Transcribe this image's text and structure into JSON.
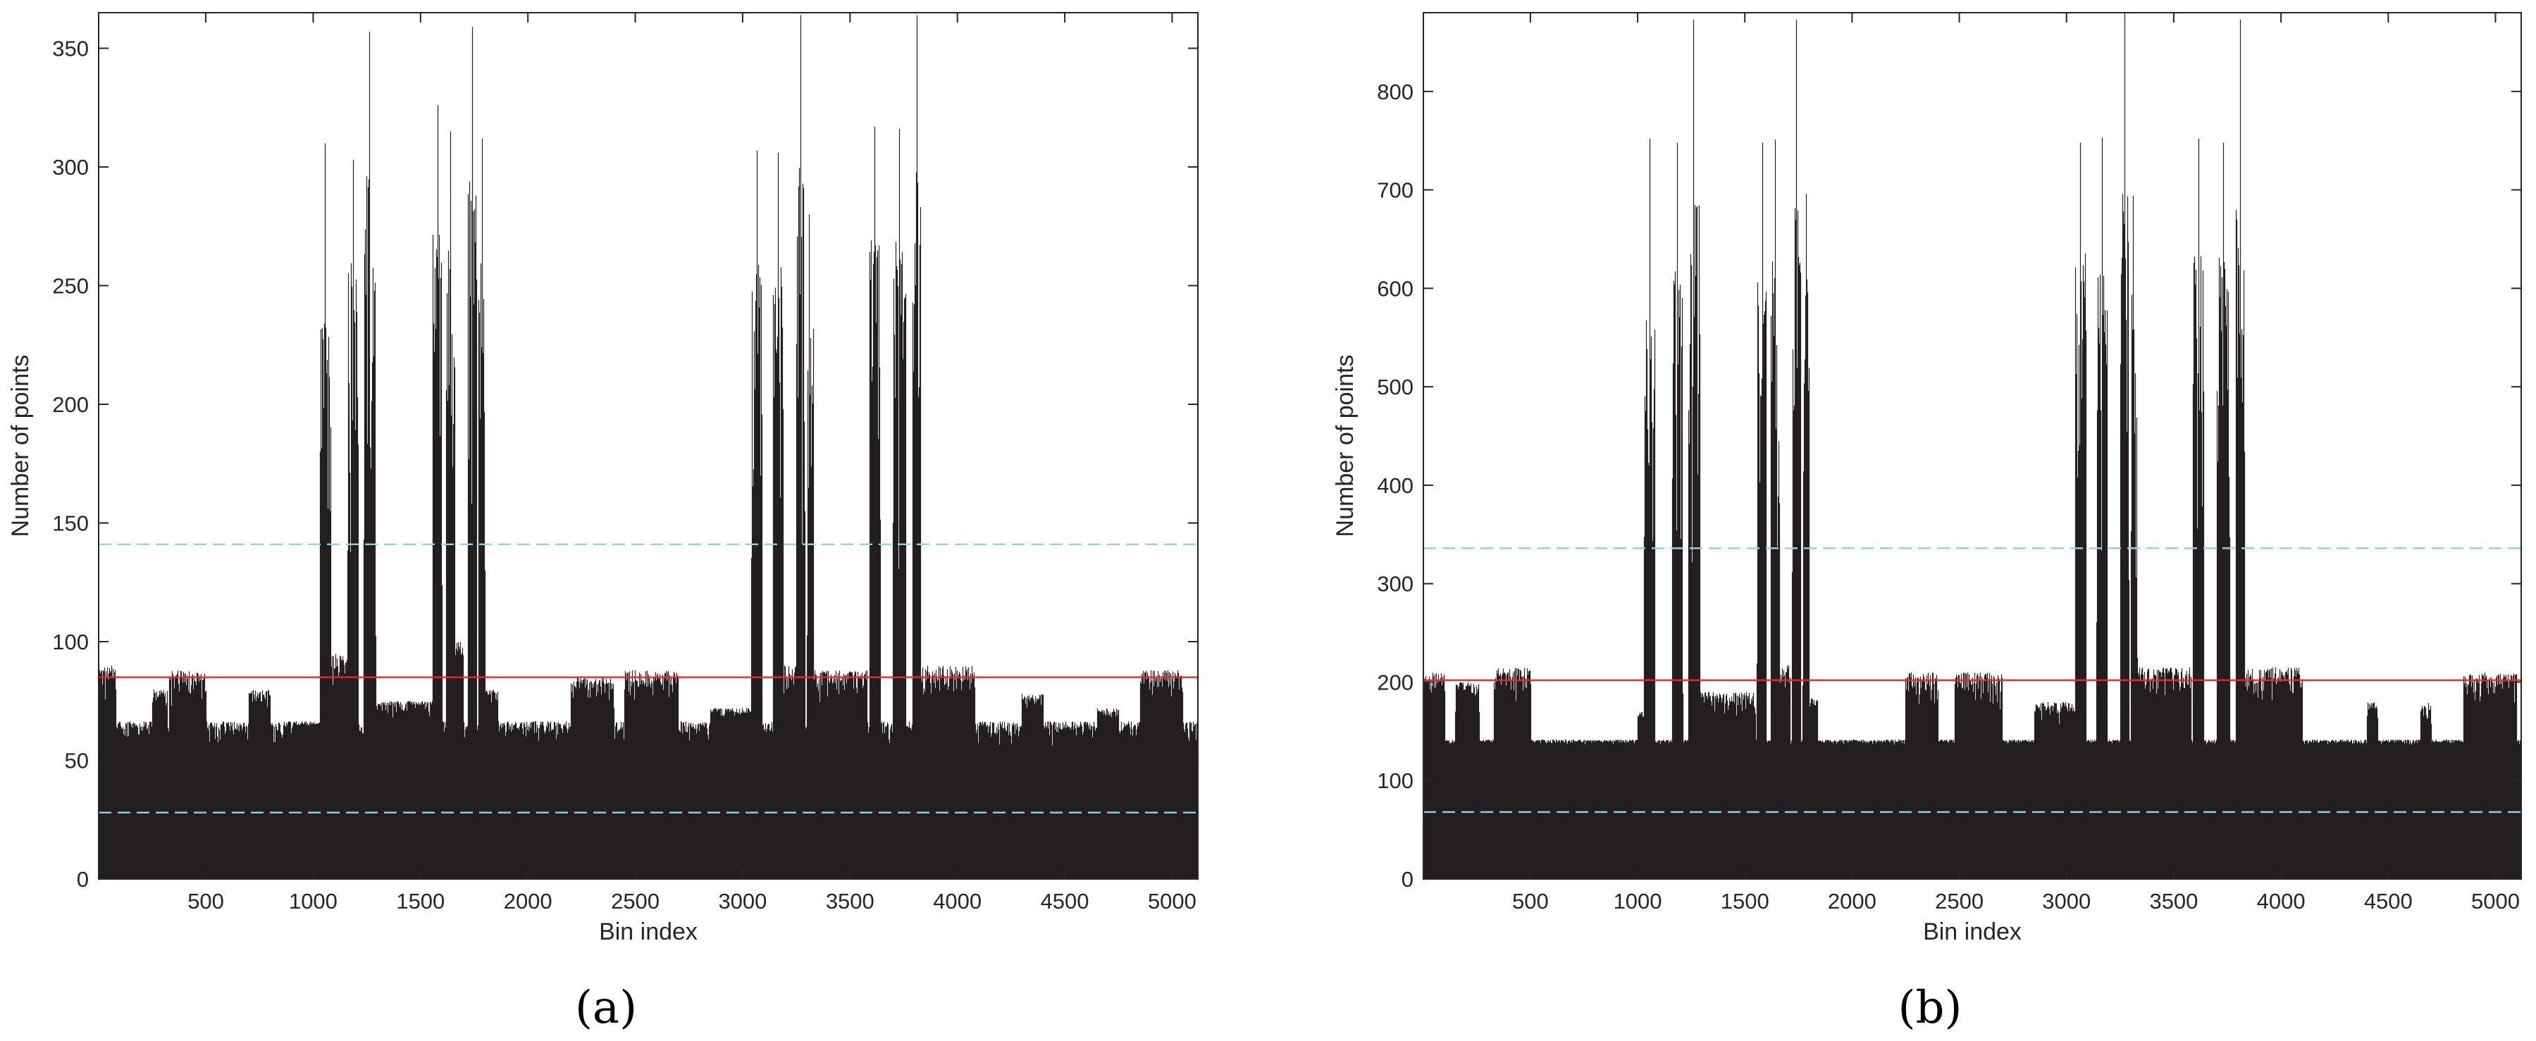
{
  "chart_data": [
    {
      "type": "bar",
      "panel_label": "(a)",
      "xlabel": "Bin index",
      "ylabel": "Number of points",
      "xlim": [
        1,
        5120
      ],
      "ylim": [
        0,
        365
      ],
      "xticks": [
        500,
        1000,
        1500,
        2000,
        2500,
        3000,
        3500,
        4000,
        4500,
        5000
      ],
      "yticks": [
        0,
        50,
        100,
        150,
        200,
        250,
        300,
        350
      ],
      "grid": false,
      "bar_color": "#231f20",
      "baseline": 60,
      "noise_amplitude": 18,
      "clusters": [
        {
          "x0": 0,
          "x1": 80,
          "level": 90
        },
        {
          "x0": 250,
          "x1": 320,
          "level": 80
        },
        {
          "x0": 330,
          "x1": 500,
          "level": 88
        },
        {
          "x0": 700,
          "x1": 800,
          "level": 80
        },
        {
          "x0": 900,
          "x1": 1050,
          "level": 66
        },
        {
          "x0": 1080,
          "x1": 1180,
          "level": 95
        },
        {
          "x0": 1280,
          "x1": 1560,
          "level": 75
        },
        {
          "x0": 1650,
          "x1": 1700,
          "level": 100
        },
        {
          "x0": 1780,
          "x1": 1860,
          "level": 80
        },
        {
          "x0": 2200,
          "x1": 2400,
          "level": 85
        },
        {
          "x0": 2450,
          "x1": 2700,
          "level": 88
        },
        {
          "x0": 2850,
          "x1": 3050,
          "level": 72
        },
        {
          "x0": 3180,
          "x1": 3260,
          "level": 90
        },
        {
          "x0": 3320,
          "x1": 3580,
          "level": 88
        },
        {
          "x0": 3830,
          "x1": 4080,
          "level": 90
        },
        {
          "x0": 4300,
          "x1": 4400,
          "level": 78
        },
        {
          "x0": 4650,
          "x1": 4750,
          "level": 72
        },
        {
          "x0": 4850,
          "x1": 5050,
          "level": 88
        }
      ],
      "peaks": [
        {
          "x0": 1030,
          "x1": 1080,
          "level": 240
        },
        {
          "x0": 1160,
          "x1": 1210,
          "level": 260
        },
        {
          "x0": 1235,
          "x1": 1290,
          "level": 300
        },
        {
          "x0": 1555,
          "x1": 1600,
          "level": 280
        },
        {
          "x0": 1620,
          "x1": 1660,
          "level": 270
        },
        {
          "x0": 1720,
          "x1": 1760,
          "level": 300
        },
        {
          "x0": 1770,
          "x1": 1800,
          "level": 260
        },
        {
          "x0": 3040,
          "x1": 3090,
          "level": 260
        },
        {
          "x0": 3140,
          "x1": 3190,
          "level": 260
        },
        {
          "x0": 3250,
          "x1": 3290,
          "level": 300
        },
        {
          "x0": 3300,
          "x1": 3330,
          "level": 240
        },
        {
          "x0": 3590,
          "x1": 3640,
          "level": 270
        },
        {
          "x0": 3700,
          "x1": 3760,
          "level": 270
        },
        {
          "x0": 3790,
          "x1": 3830,
          "level": 300
        }
      ],
      "peak_maxima": [
        {
          "x": 1055,
          "y": 310
        },
        {
          "x": 1185,
          "y": 303
        },
        {
          "x": 1260,
          "y": 357
        },
        {
          "x": 1580,
          "y": 326
        },
        {
          "x": 1640,
          "y": 315
        },
        {
          "x": 1740,
          "y": 359
        },
        {
          "x": 1785,
          "y": 312
        },
        {
          "x": 3065,
          "y": 307
        },
        {
          "x": 3165,
          "y": 306
        },
        {
          "x": 3270,
          "y": 364
        },
        {
          "x": 3310,
          "y": 280
        },
        {
          "x": 3615,
          "y": 317
        },
        {
          "x": 3730,
          "y": 316
        },
        {
          "x": 3810,
          "y": 364
        }
      ],
      "reference_lines": [
        {
          "y": 85,
          "style": "solid",
          "color": "#e52a2a"
        },
        {
          "y": 141,
          "style": "dashed",
          "color": "#8fd3ea"
        },
        {
          "y": 28,
          "style": "dashed",
          "color": "#8fd3ea"
        }
      ]
    },
    {
      "type": "bar",
      "panel_label": "(b)",
      "xlabel": "Bin index",
      "ylabel": "Number of points",
      "xlim": [
        1,
        5120
      ],
      "ylim": [
        0,
        880
      ],
      "xticks": [
        500,
        1000,
        1500,
        2000,
        2500,
        3000,
        3500,
        4000,
        4500,
        5000
      ],
      "yticks": [
        0,
        100,
        200,
        300,
        400,
        500,
        600,
        700,
        800
      ],
      "grid": false,
      "bar_color": "#231f20",
      "baseline": 138,
      "noise_amplitude": 10,
      "clusters": [
        {
          "x0": 0,
          "x1": 100,
          "level": 210
        },
        {
          "x0": 150,
          "x1": 260,
          "level": 200
        },
        {
          "x0": 330,
          "x1": 500,
          "level": 215
        },
        {
          "x0": 1000,
          "x1": 1040,
          "level": 170
        },
        {
          "x0": 1280,
          "x1": 1550,
          "level": 190
        },
        {
          "x0": 1650,
          "x1": 1710,
          "level": 220
        },
        {
          "x0": 1780,
          "x1": 1840,
          "level": 185
        },
        {
          "x0": 2250,
          "x1": 2400,
          "level": 210
        },
        {
          "x0": 2480,
          "x1": 2700,
          "level": 210
        },
        {
          "x0": 2850,
          "x1": 3050,
          "level": 180
        },
        {
          "x0": 3320,
          "x1": 3580,
          "level": 215
        },
        {
          "x0": 3830,
          "x1": 4100,
          "level": 215
        },
        {
          "x0": 4400,
          "x1": 4450,
          "level": 180
        },
        {
          "x0": 4650,
          "x1": 4700,
          "level": 180
        },
        {
          "x0": 4850,
          "x1": 5100,
          "level": 210
        }
      ],
      "peaks": [
        {
          "x0": 1030,
          "x1": 1080,
          "level": 600
        },
        {
          "x0": 1160,
          "x1": 1210,
          "level": 620
        },
        {
          "x0": 1235,
          "x1": 1290,
          "level": 700
        },
        {
          "x0": 1555,
          "x1": 1600,
          "level": 620
        },
        {
          "x0": 1620,
          "x1": 1660,
          "level": 640
        },
        {
          "x0": 1720,
          "x1": 1760,
          "level": 700
        },
        {
          "x0": 1770,
          "x1": 1800,
          "level": 620
        },
        {
          "x0": 3040,
          "x1": 3090,
          "level": 640
        },
        {
          "x0": 3140,
          "x1": 3190,
          "level": 640
        },
        {
          "x0": 3250,
          "x1": 3290,
          "level": 700
        },
        {
          "x0": 3300,
          "x1": 3330,
          "level": 600
        },
        {
          "x0": 3590,
          "x1": 3640,
          "level": 640
        },
        {
          "x0": 3700,
          "x1": 3760,
          "level": 640
        },
        {
          "x0": 3790,
          "x1": 3830,
          "level": 700
        }
      ],
      "peak_maxima": [
        {
          "x": 1055,
          "y": 752
        },
        {
          "x": 1185,
          "y": 748
        },
        {
          "x": 1260,
          "y": 873
        },
        {
          "x": 1580,
          "y": 748
        },
        {
          "x": 1640,
          "y": 751
        },
        {
          "x": 1740,
          "y": 873
        },
        {
          "x": 1785,
          "y": 696
        },
        {
          "x": 3065,
          "y": 748
        },
        {
          "x": 3165,
          "y": 753
        },
        {
          "x": 3270,
          "y": 880
        },
        {
          "x": 3310,
          "y": 694
        },
        {
          "x": 3615,
          "y": 752
        },
        {
          "x": 3730,
          "y": 748
        },
        {
          "x": 3810,
          "y": 873
        }
      ],
      "reference_lines": [
        {
          "y": 202,
          "style": "solid",
          "color": "#e52a2a"
        },
        {
          "y": 336,
          "style": "dashed",
          "color": "#8fd3ea"
        },
        {
          "y": 68,
          "style": "dashed",
          "color": "#8fd3ea"
        }
      ]
    }
  ]
}
